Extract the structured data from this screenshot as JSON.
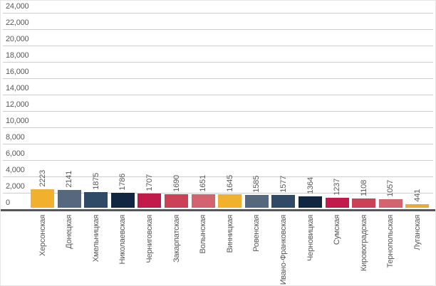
{
  "chart_data": {
    "type": "bar",
    "title": "",
    "xlabel": "",
    "ylabel": "",
    "categories": [
      "Херсонская",
      "Донецкая",
      "Хмельницкая",
      "Николаевская",
      "Черниговская",
      "Закарпатская",
      "Волынская",
      "Винницкая",
      "Ровенская",
      "Ивано-Франковская",
      "Черновицкая",
      "Сумская",
      "Кировоградская",
      "Тернопольская",
      "Луганская"
    ],
    "values": [
      2223,
      2141,
      1875,
      1786,
      1707,
      1690,
      1651,
      1645,
      1585,
      1577,
      1364,
      1237,
      1108,
      1057,
      441
    ],
    "bar_colors": [
      "#F1B02E",
      "#55687E",
      "#2E4A66",
      "#112741",
      "#C11A4B",
      "#CB4156",
      "#D2636F",
      "#F1B02E",
      "#55687E",
      "#2E4A66",
      "#112741",
      "#C11A4B",
      "#CB4156",
      "#D2636F",
      "#E9AA36"
    ],
    "value_labels_rotated": true,
    "category_labels_rotated": true,
    "legend": false,
    "grid": true,
    "y_axis": {
      "min": 0,
      "max": 24000,
      "step": 2000,
      "tick_labels": [
        "0",
        "2,000",
        "4,000",
        "6,000",
        "8,000",
        "10,000",
        "12,000",
        "14,000",
        "16,000",
        "18,000",
        "20,000",
        "22,000",
        "24,000"
      ]
    },
    "style": {
      "grid_color": "#cdcdcd",
      "axis_color": "#55565a",
      "text_color": "#595959",
      "background": "#ffffff"
    }
  }
}
